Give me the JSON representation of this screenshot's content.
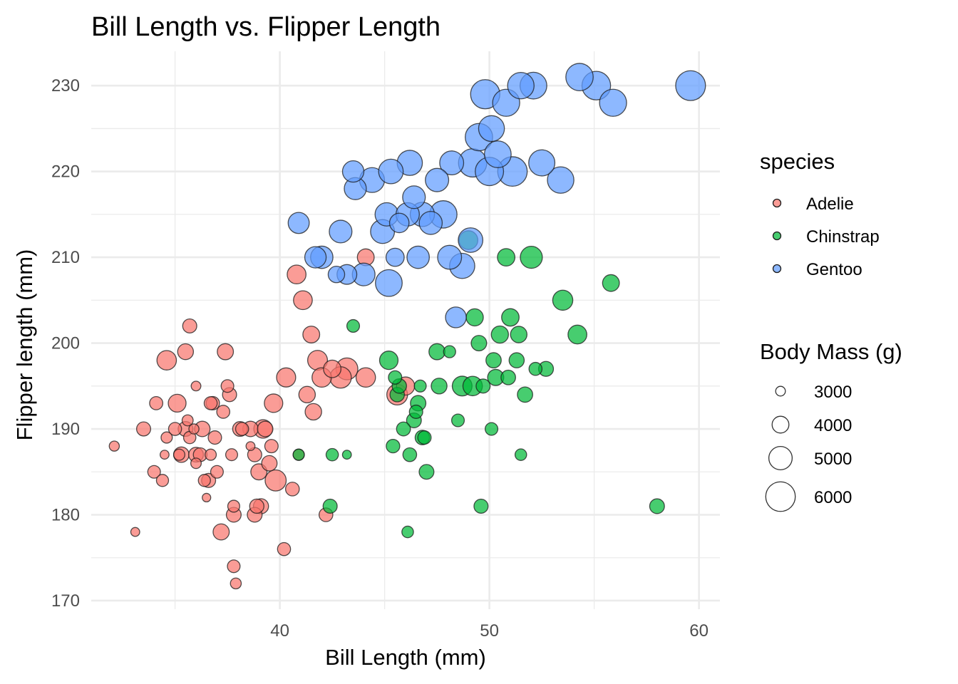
{
  "chart_data": {
    "type": "scatter",
    "title": "Bill Length vs. Flipper Length",
    "xlabel": "Bill Length (mm)",
    "ylabel": "Flipper length (mm)",
    "xlim": [
      31,
      61
    ],
    "ylim": [
      169,
      234
    ],
    "x_ticks": [
      40,
      50,
      60
    ],
    "y_ticks": [
      170,
      180,
      190,
      200,
      210,
      220,
      230
    ],
    "grid": true,
    "legend": {
      "color_title": "species",
      "size_title": "Body Mass (g)",
      "placement": "right",
      "size_breaks": [
        3000,
        4000,
        5000,
        6000
      ]
    },
    "series": [
      {
        "name": "Adelie",
        "color": "#F8766D",
        "points": [
          [
            32.1,
            188,
            3050
          ],
          [
            33.1,
            178,
            2900
          ],
          [
            33.5,
            190,
            3600
          ],
          [
            34.0,
            185,
            3400
          ],
          [
            34.1,
            193,
            3475
          ],
          [
            34.4,
            184,
            3325
          ],
          [
            34.5,
            187,
            2900
          ],
          [
            34.6,
            189,
            3200
          ],
          [
            34.6,
            198,
            4400
          ],
          [
            35.0,
            190,
            3450
          ],
          [
            35.1,
            193,
            4150
          ],
          [
            35.2,
            187,
            3200
          ],
          [
            35.3,
            187,
            3800
          ],
          [
            35.5,
            190,
            3700
          ],
          [
            35.5,
            199,
            3850
          ],
          [
            35.6,
            191,
            3175
          ],
          [
            35.7,
            202,
            3600
          ],
          [
            35.7,
            189,
            3350
          ],
          [
            35.9,
            190,
            3050
          ],
          [
            36.0,
            195,
            3000
          ],
          [
            36.0,
            187,
            3700
          ],
          [
            36.0,
            186,
            3100
          ],
          [
            36.2,
            187,
            3550
          ],
          [
            36.3,
            190,
            3800
          ],
          [
            36.4,
            184,
            3325
          ],
          [
            36.5,
            182,
            2850
          ],
          [
            36.6,
            184,
            3600
          ],
          [
            36.7,
            187,
            3200
          ],
          [
            36.7,
            193,
            3450
          ],
          [
            36.8,
            193,
            3500
          ],
          [
            36.9,
            189,
            3500
          ],
          [
            37.0,
            185,
            3400
          ],
          [
            37.2,
            178,
            3900
          ],
          [
            37.3,
            192,
            3450
          ],
          [
            37.4,
            199,
            3900
          ],
          [
            37.5,
            195,
            3400
          ],
          [
            37.6,
            194,
            3600
          ],
          [
            37.7,
            187,
            3300
          ],
          [
            37.8,
            180,
            3700
          ],
          [
            37.8,
            181,
            3300
          ],
          [
            37.8,
            174,
            3400
          ],
          [
            37.9,
            172,
            3150
          ],
          [
            38.1,
            190,
            3700
          ],
          [
            38.2,
            190,
            3450
          ],
          [
            38.6,
            190,
            3800
          ],
          [
            38.6,
            188,
            2900
          ],
          [
            38.8,
            180,
            3700
          ],
          [
            38.8,
            187,
            3600
          ],
          [
            38.9,
            181,
            3625
          ],
          [
            39.0,
            185,
            3900
          ],
          [
            39.1,
            181,
            3750
          ],
          [
            39.2,
            190,
            4250
          ],
          [
            39.3,
            190,
            3800
          ],
          [
            39.5,
            186,
            3800
          ],
          [
            39.6,
            188,
            3500
          ],
          [
            39.7,
            193,
            4250
          ],
          [
            39.8,
            184,
            4650
          ],
          [
            40.2,
            176,
            3450
          ],
          [
            40.3,
            196,
            4350
          ],
          [
            40.6,
            183,
            3550
          ],
          [
            40.8,
            208,
            4300
          ],
          [
            40.9,
            187,
            3200
          ],
          [
            41.1,
            205,
            4300
          ],
          [
            41.3,
            194,
            3950
          ],
          [
            41.5,
            201,
            4000
          ],
          [
            41.6,
            192,
            3950
          ],
          [
            41.8,
            198,
            4450
          ],
          [
            42.0,
            196,
            4400
          ],
          [
            42.2,
            180,
            3550
          ],
          [
            42.5,
            197,
            4100
          ],
          [
            42.9,
            196,
            4700
          ],
          [
            43.2,
            197,
            4775
          ],
          [
            44.1,
            210,
            4000
          ],
          [
            44.1,
            196,
            4400
          ],
          [
            45.6,
            194,
            4600
          ],
          [
            46.0,
            195,
            4200
          ]
        ]
      },
      {
        "name": "Chinstrap",
        "color": "#00BA38",
        "points": [
          [
            40.9,
            187,
            3200
          ],
          [
            42.4,
            181,
            3600
          ],
          [
            42.5,
            187,
            3350
          ],
          [
            43.2,
            187,
            2900
          ],
          [
            43.5,
            202,
            3400
          ],
          [
            45.2,
            198,
            4250
          ],
          [
            45.4,
            188,
            3525
          ],
          [
            45.5,
            196,
            3500
          ],
          [
            45.6,
            194,
            3650
          ],
          [
            45.7,
            195,
            3650
          ],
          [
            45.9,
            190,
            3575
          ],
          [
            46.1,
            178,
            3250
          ],
          [
            46.2,
            187,
            3550
          ],
          [
            46.4,
            191,
            3700
          ],
          [
            46.5,
            192,
            3500
          ],
          [
            46.6,
            193,
            3800
          ],
          [
            46.7,
            195,
            3300
          ],
          [
            46.8,
            189,
            3650
          ],
          [
            46.9,
            189,
            3500
          ],
          [
            47.0,
            185,
            3700
          ],
          [
            47.5,
            199,
            3900
          ],
          [
            47.6,
            195,
            3850
          ],
          [
            48.1,
            199,
            3325
          ],
          [
            48.5,
            191,
            3400
          ],
          [
            48.7,
            195,
            4450
          ],
          [
            49.0,
            212,
            4300
          ],
          [
            49.2,
            195,
            4400
          ],
          [
            49.3,
            203,
            4050
          ],
          [
            49.5,
            200,
            3800
          ],
          [
            49.6,
            181,
            3600
          ],
          [
            49.7,
            195,
            3600
          ],
          [
            50.1,
            190,
            3400
          ],
          [
            50.2,
            198,
            3775
          ],
          [
            50.3,
            196,
            3900
          ],
          [
            50.5,
            201,
            4050
          ],
          [
            50.8,
            210,
            4100
          ],
          [
            50.9,
            196,
            3675
          ],
          [
            51.0,
            203,
            4100
          ],
          [
            51.3,
            198,
            3750
          ],
          [
            51.4,
            201,
            3950
          ],
          [
            51.5,
            187,
            3250
          ],
          [
            51.7,
            194,
            3775
          ],
          [
            52.0,
            210,
            4800
          ],
          [
            52.2,
            197,
            3450
          ],
          [
            52.7,
            197,
            3725
          ],
          [
            53.5,
            205,
            4500
          ],
          [
            54.2,
            201,
            4300
          ],
          [
            55.8,
            207,
            4000
          ],
          [
            58.0,
            181,
            3700
          ]
        ]
      },
      {
        "name": "Gentoo",
        "color": "#619CFF",
        "points": [
          [
            40.9,
            214,
            4650
          ],
          [
            41.7,
            210,
            4700
          ],
          [
            42.0,
            210,
            4850
          ],
          [
            42.7,
            208,
            3950
          ],
          [
            42.9,
            213,
            4900
          ],
          [
            43.2,
            208,
            4450
          ],
          [
            43.5,
            220,
            4700
          ],
          [
            43.6,
            218,
            4800
          ],
          [
            44.0,
            208,
            4900
          ],
          [
            44.4,
            219,
            5250
          ],
          [
            44.9,
            213,
            5100
          ],
          [
            45.1,
            215,
            5000
          ],
          [
            45.2,
            207,
            5550
          ],
          [
            45.3,
            220,
            5200
          ],
          [
            45.5,
            210,
            4200
          ],
          [
            45.7,
            214,
            4400
          ],
          [
            46.1,
            215,
            5000
          ],
          [
            46.2,
            221,
            5300
          ],
          [
            46.4,
            217,
            4900
          ],
          [
            46.6,
            210,
            4850
          ],
          [
            46.8,
            215,
            5150
          ],
          [
            47.2,
            214,
            4950
          ],
          [
            47.5,
            219,
            5000
          ],
          [
            47.8,
            215,
            5650
          ],
          [
            48.1,
            210,
            5100
          ],
          [
            48.2,
            221,
            5100
          ],
          [
            48.4,
            203,
            4600
          ],
          [
            48.7,
            209,
            5300
          ],
          [
            49.1,
            212,
            5200
          ],
          [
            49.2,
            221,
            5800
          ],
          [
            49.5,
            224,
            5650
          ],
          [
            49.8,
            229,
            5950
          ],
          [
            50.0,
            220,
            5800
          ],
          [
            50.1,
            225,
            5400
          ],
          [
            50.4,
            222,
            5550
          ],
          [
            50.8,
            228,
            5600
          ],
          [
            51.1,
            220,
            6000
          ],
          [
            51.5,
            230,
            5500
          ],
          [
            52.1,
            230,
            5550
          ],
          [
            52.5,
            221,
            5450
          ],
          [
            53.4,
            219,
            5500
          ],
          [
            54.3,
            231,
            5650
          ],
          [
            55.1,
            230,
            5850
          ],
          [
            55.9,
            228,
            5600
          ],
          [
            59.6,
            230,
            6050
          ]
        ]
      }
    ]
  }
}
